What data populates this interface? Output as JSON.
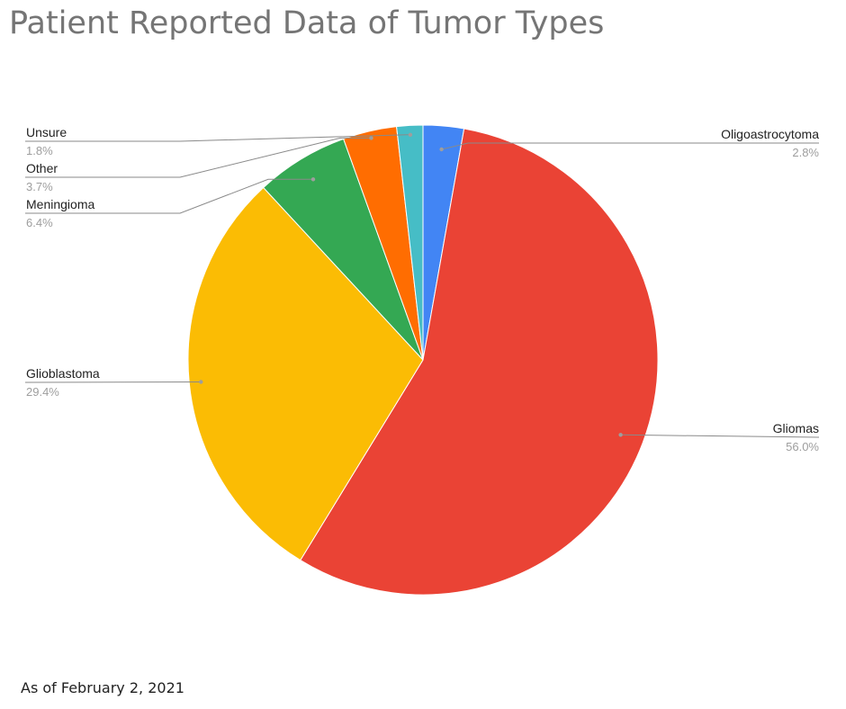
{
  "title": "Patient Reported Data of Tumor Types",
  "footnote": "As of February 2, 2021",
  "chart_data": {
    "type": "pie",
    "title": "Patient Reported Data of Tumor Types",
    "start_angle": "12 o'clock, clockwise",
    "legend": "labeled slices",
    "slices": [
      {
        "label": "Oligoastrocytoma",
        "value": 2.8,
        "pct_label": "2.8%",
        "color": "#4285f4"
      },
      {
        "label": "Gliomas",
        "value": 56.0,
        "pct_label": "56.0%",
        "color": "#ea4335"
      },
      {
        "label": "Glioblastoma",
        "value": 29.4,
        "pct_label": "29.4%",
        "color": "#fbbc04"
      },
      {
        "label": "Meningioma",
        "value": 6.4,
        "pct_label": "6.4%",
        "color": "#34a853"
      },
      {
        "label": "Other",
        "value": 3.7,
        "pct_label": "3.7%",
        "color": "#ff6d01"
      },
      {
        "label": "Unsure",
        "value": 1.8,
        "pct_label": "1.8%",
        "color": "#46bdc6"
      }
    ]
  }
}
